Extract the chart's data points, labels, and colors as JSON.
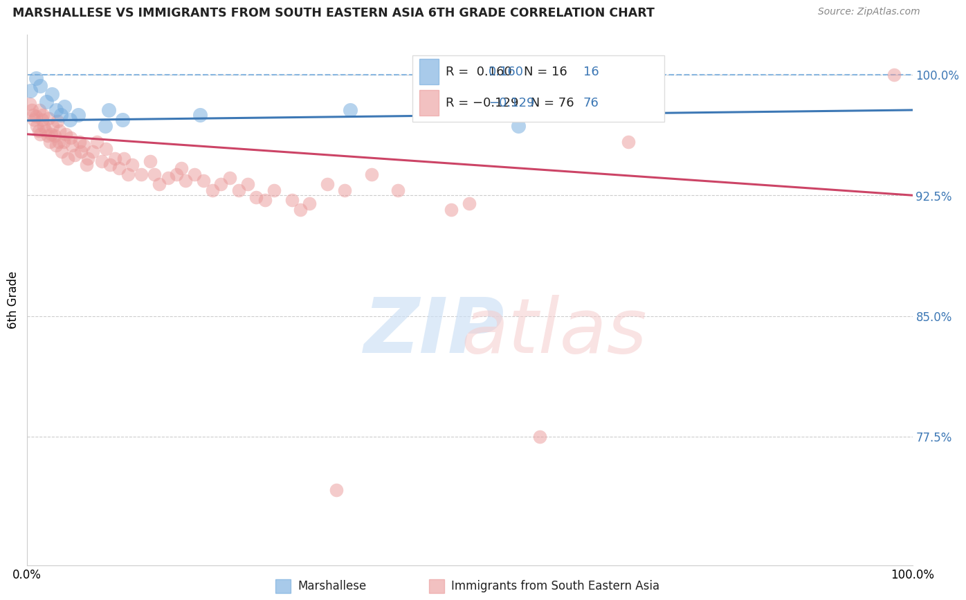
{
  "title": "MARSHALLESE VS IMMIGRANTS FROM SOUTH EASTERN ASIA 6TH GRADE CORRELATION CHART",
  "source": "Source: ZipAtlas.com",
  "ylabel": "6th Grade",
  "xlim": [
    0.0,
    1.0
  ],
  "ylim": [
    0.695,
    1.025
  ],
  "yticks": [
    0.775,
    0.85,
    0.925,
    1.0
  ],
  "ytick_labels": [
    "77.5%",
    "85.0%",
    "92.5%",
    "100.0%"
  ],
  "marshallese_color": "#6fa8dc",
  "sea_color": "#ea9999",
  "marshallese_line_color": "#3d78b5",
  "sea_line_color": "#cc4466",
  "dashed_line_color": "#6fa8dc",
  "marshallese_points": [
    [
      0.004,
      0.99
    ],
    [
      0.01,
      0.998
    ],
    [
      0.015,
      0.993
    ],
    [
      0.022,
      0.983
    ],
    [
      0.028,
      0.988
    ],
    [
      0.033,
      0.978
    ],
    [
      0.038,
      0.975
    ],
    [
      0.042,
      0.98
    ],
    [
      0.048,
      0.972
    ],
    [
      0.058,
      0.975
    ],
    [
      0.088,
      0.968
    ],
    [
      0.092,
      0.978
    ],
    [
      0.108,
      0.972
    ],
    [
      0.195,
      0.975
    ],
    [
      0.365,
      0.978
    ],
    [
      0.555,
      0.968
    ]
  ],
  "sea_points": [
    [
      0.003,
      0.982
    ],
    [
      0.005,
      0.978
    ],
    [
      0.007,
      0.975
    ],
    [
      0.008,
      0.972
    ],
    [
      0.01,
      0.974
    ],
    [
      0.011,
      0.968
    ],
    [
      0.013,
      0.965
    ],
    [
      0.014,
      0.978
    ],
    [
      0.015,
      0.963
    ],
    [
      0.017,
      0.972
    ],
    [
      0.018,
      0.975
    ],
    [
      0.019,
      0.968
    ],
    [
      0.021,
      0.965
    ],
    [
      0.023,
      0.962
    ],
    [
      0.024,
      0.973
    ],
    [
      0.026,
      0.958
    ],
    [
      0.027,
      0.963
    ],
    [
      0.029,
      0.968
    ],
    [
      0.031,
      0.962
    ],
    [
      0.033,
      0.956
    ],
    [
      0.034,
      0.971
    ],
    [
      0.036,
      0.958
    ],
    [
      0.037,
      0.965
    ],
    [
      0.039,
      0.952
    ],
    [
      0.041,
      0.958
    ],
    [
      0.044,
      0.963
    ],
    [
      0.046,
      0.948
    ],
    [
      0.049,
      0.961
    ],
    [
      0.051,
      0.956
    ],
    [
      0.054,
      0.95
    ],
    [
      0.059,
      0.958
    ],
    [
      0.061,
      0.952
    ],
    [
      0.064,
      0.956
    ],
    [
      0.067,
      0.944
    ],
    [
      0.069,
      0.948
    ],
    [
      0.074,
      0.952
    ],
    [
      0.079,
      0.958
    ],
    [
      0.084,
      0.946
    ],
    [
      0.089,
      0.954
    ],
    [
      0.094,
      0.944
    ],
    [
      0.099,
      0.948
    ],
    [
      0.104,
      0.942
    ],
    [
      0.109,
      0.948
    ],
    [
      0.114,
      0.938
    ],
    [
      0.119,
      0.944
    ],
    [
      0.129,
      0.938
    ],
    [
      0.139,
      0.946
    ],
    [
      0.144,
      0.938
    ],
    [
      0.149,
      0.932
    ],
    [
      0.159,
      0.936
    ],
    [
      0.169,
      0.938
    ],
    [
      0.174,
      0.942
    ],
    [
      0.179,
      0.934
    ],
    [
      0.189,
      0.938
    ],
    [
      0.199,
      0.934
    ],
    [
      0.209,
      0.928
    ],
    [
      0.219,
      0.932
    ],
    [
      0.229,
      0.936
    ],
    [
      0.239,
      0.928
    ],
    [
      0.249,
      0.932
    ],
    [
      0.259,
      0.924
    ],
    [
      0.269,
      0.922
    ],
    [
      0.279,
      0.928
    ],
    [
      0.299,
      0.922
    ],
    [
      0.309,
      0.916
    ],
    [
      0.319,
      0.92
    ],
    [
      0.339,
      0.932
    ],
    [
      0.359,
      0.928
    ],
    [
      0.389,
      0.938
    ],
    [
      0.419,
      0.928
    ],
    [
      0.479,
      0.916
    ],
    [
      0.499,
      0.92
    ],
    [
      0.679,
      0.958
    ],
    [
      0.579,
      0.775
    ],
    [
      0.349,
      0.742
    ],
    [
      0.979,
      1.0
    ]
  ],
  "legend_items": [
    {
      "label": "R =  0.160   N = 16",
      "color": "#6fa8dc"
    },
    {
      "label": "R = -0.129   N = 76",
      "color": "#ea9999"
    }
  ],
  "bottom_legend": [
    {
      "label": "Marshallese",
      "color": "#6fa8dc"
    },
    {
      "label": "Immigrants from South Eastern Asia",
      "color": "#ea9999"
    }
  ]
}
